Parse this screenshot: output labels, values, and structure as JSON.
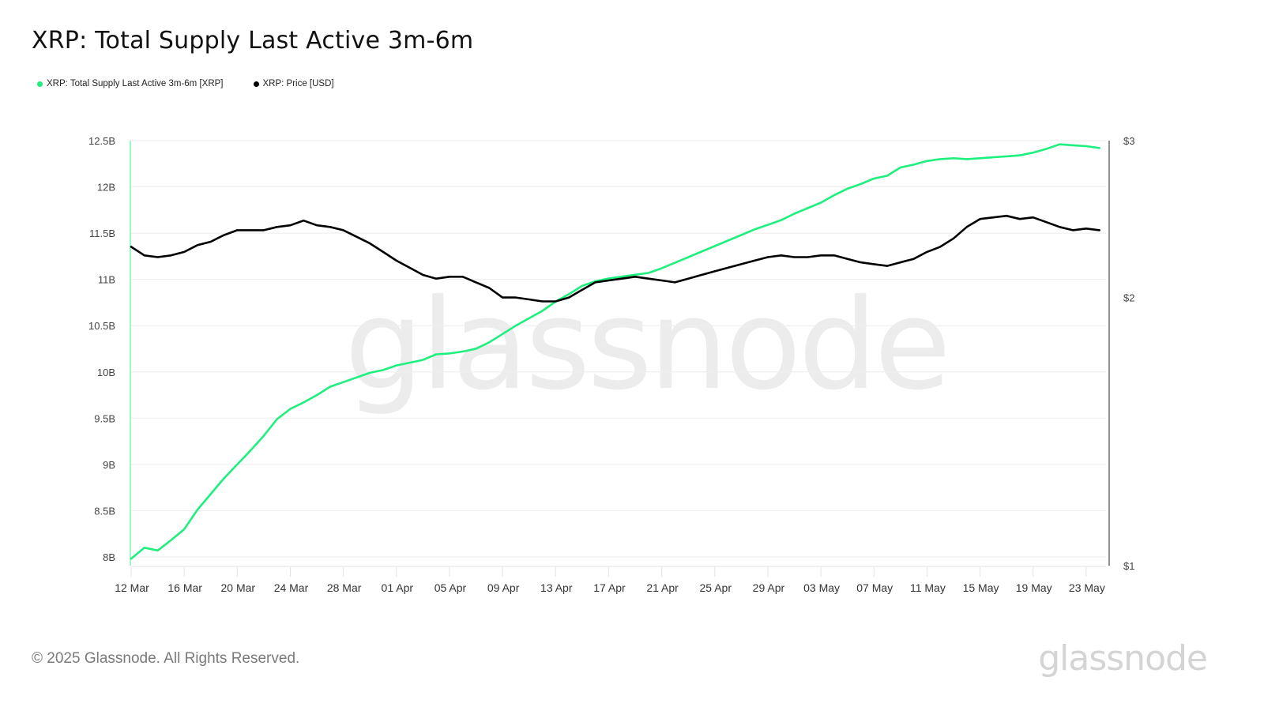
{
  "title": "XRP: Total Supply Last Active 3m-6m",
  "legend": [
    {
      "label": "XRP: Total Supply Last Active 3m-6m [XRP]",
      "color": "#1ef07e"
    },
    {
      "label": "XRP: Price [USD]",
      "color": "#000000"
    }
  ],
  "watermark": "glassnode",
  "footer": {
    "copyright": "© 2025 Glassnode. All Rights Reserved.",
    "brand": "glassnode"
  },
  "chart_data": {
    "type": "line",
    "title": "XRP: Total Supply Last Active 3m-6m",
    "xlabel": "",
    "ylabel": "Total Supply Last Active 3m-6m [XRP]",
    "y2label": "Price [USD]",
    "ylim": [
      8,
      12.5
    ],
    "y2lim": [
      1,
      3
    ],
    "y2scale": "log",
    "grid": true,
    "legend_position": "top-left",
    "y_ticks": [
      "8B",
      "8.5B",
      "9B",
      "9.5B",
      "10B",
      "10.5B",
      "11B",
      "11.5B",
      "12B",
      "12.5B"
    ],
    "y_tick_values": [
      8,
      8.5,
      9,
      9.5,
      10,
      10.5,
      11,
      11.5,
      12,
      12.5
    ],
    "y2_ticks": [
      "$1",
      "$2",
      "$3"
    ],
    "y2_tick_values": [
      1,
      2,
      3
    ],
    "x_ticks": [
      "12 Mar",
      "16 Mar",
      "20 Mar",
      "24 Mar",
      "28 Mar",
      "01 Apr",
      "05 Apr",
      "09 Apr",
      "13 Apr",
      "17 Apr",
      "21 Apr",
      "25 Apr",
      "29 Apr",
      "03 May",
      "07 May",
      "11 May",
      "15 May",
      "19 May",
      "23 May"
    ],
    "x": [
      "12 Mar",
      "13 Mar",
      "14 Mar",
      "15 Mar",
      "16 Mar",
      "17 Mar",
      "18 Mar",
      "19 Mar",
      "20 Mar",
      "21 Mar",
      "22 Mar",
      "23 Mar",
      "24 Mar",
      "25 Mar",
      "26 Mar",
      "27 Mar",
      "28 Mar",
      "29 Mar",
      "30 Mar",
      "31 Mar",
      "01 Apr",
      "02 Apr",
      "03 Apr",
      "04 Apr",
      "05 Apr",
      "06 Apr",
      "07 Apr",
      "08 Apr",
      "09 Apr",
      "10 Apr",
      "11 Apr",
      "12 Apr",
      "13 Apr",
      "14 Apr",
      "15 Apr",
      "16 Apr",
      "17 Apr",
      "18 Apr",
      "19 Apr",
      "20 Apr",
      "21 Apr",
      "22 Apr",
      "23 Apr",
      "24 Apr",
      "25 Apr",
      "26 Apr",
      "27 Apr",
      "28 Apr",
      "29 Apr",
      "30 Apr",
      "01 May",
      "02 May",
      "03 May",
      "04 May",
      "05 May",
      "06 May",
      "07 May",
      "08 May",
      "09 May",
      "10 May",
      "11 May",
      "12 May",
      "13 May",
      "14 May",
      "15 May",
      "16 May",
      "17 May",
      "18 May",
      "19 May",
      "20 May",
      "21 May",
      "22 May",
      "23 May",
      "24 May"
    ],
    "series": [
      {
        "name": "XRP: Total Supply Last Active 3m-6m [XRP]",
        "axis": "left",
        "unit": "B",
        "color": "#1ef07e",
        "values": [
          7.98,
          8.1,
          8.07,
          8.18,
          8.3,
          8.51,
          8.68,
          8.85,
          9.0,
          9.15,
          9.31,
          9.49,
          9.6,
          9.67,
          9.75,
          9.84,
          9.89,
          9.94,
          9.99,
          10.02,
          10.07,
          10.1,
          10.13,
          10.19,
          10.2,
          10.22,
          10.25,
          10.32,
          10.41,
          10.5,
          10.58,
          10.66,
          10.76,
          10.84,
          10.93,
          10.98,
          11.01,
          11.03,
          11.05,
          11.07,
          11.12,
          11.18,
          11.24,
          11.3,
          11.36,
          11.42,
          11.48,
          11.54,
          11.59,
          11.64,
          11.71,
          11.77,
          11.83,
          11.91,
          11.98,
          12.03,
          12.09,
          12.12,
          12.21,
          12.24,
          12.28,
          12.3,
          12.31,
          12.3,
          12.31,
          12.32,
          12.33,
          12.34,
          12.37,
          12.41,
          12.46,
          12.45,
          12.44,
          12.42
        ]
      },
      {
        "name": "XRP: Price [USD]",
        "axis": "right",
        "unit": "USD",
        "color": "#000000",
        "values": [
          2.28,
          2.23,
          2.22,
          2.23,
          2.25,
          2.29,
          2.31,
          2.35,
          2.38,
          2.38,
          2.38,
          2.4,
          2.41,
          2.44,
          2.41,
          2.4,
          2.38,
          2.34,
          2.3,
          2.25,
          2.2,
          2.16,
          2.12,
          2.1,
          2.11,
          2.11,
          2.08,
          2.05,
          2.0,
          2.0,
          1.99,
          1.98,
          1.98,
          2.0,
          2.04,
          2.08,
          2.09,
          2.1,
          2.11,
          2.1,
          2.09,
          2.08,
          2.1,
          2.12,
          2.14,
          2.16,
          2.18,
          2.2,
          2.22,
          2.23,
          2.22,
          2.22,
          2.23,
          2.23,
          2.21,
          2.19,
          2.18,
          2.17,
          2.19,
          2.21,
          2.25,
          2.28,
          2.33,
          2.4,
          2.45,
          2.46,
          2.47,
          2.45,
          2.46,
          2.43,
          2.4,
          2.38,
          2.39,
          2.38
        ]
      }
    ]
  }
}
